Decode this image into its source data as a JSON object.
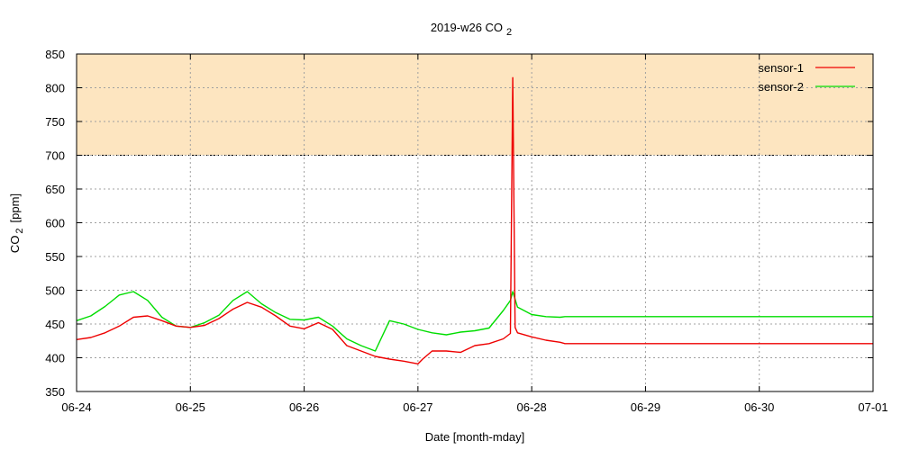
{
  "chart_data": {
    "type": "line",
    "title": "2019-w26 CO",
    "title_sub": "2",
    "xlabel": "Date [month-mday]",
    "ylabel_main": "CO",
    "ylabel_sub": "2",
    "ylabel_unit": "[ppm]",
    "ylim": [
      350,
      850
    ],
    "yticks": [
      350,
      400,
      450,
      500,
      550,
      600,
      650,
      700,
      750,
      800,
      850
    ],
    "xlim": [
      "06-24",
      "07-01"
    ],
    "xticks": [
      "06-24",
      "06-25",
      "06-26",
      "06-27",
      "06-28",
      "06-29",
      "06-30",
      "07-01"
    ],
    "grid": true,
    "legend_position": "top-right",
    "threshold": {
      "from": 700,
      "to": 850,
      "color": "#fde5c0"
    },
    "series": [
      {
        "name": "sensor-1",
        "color": "#ee0000",
        "x": [
          "06-24 00:00",
          "06-24 03:00",
          "06-24 06:00",
          "06-24 09:00",
          "06-24 12:00",
          "06-24 15:00",
          "06-24 18:00",
          "06-24 21:00",
          "06-25 00:00",
          "06-25 03:00",
          "06-25 06:00",
          "06-25 09:00",
          "06-25 12:00",
          "06-25 15:00",
          "06-25 18:00",
          "06-25 21:00",
          "06-26 00:00",
          "06-26 03:00",
          "06-26 06:00",
          "06-26 09:00",
          "06-26 12:00",
          "06-26 15:00",
          "06-26 18:00",
          "06-26 21:00",
          "06-27 00:00",
          "06-27 01:00",
          "06-27 03:00",
          "06-27 06:00",
          "06-27 09:00",
          "06-27 12:00",
          "06-27 15:00",
          "06-27 18:00",
          "06-27 19:30",
          "06-27 20:00",
          "06-27 20:30",
          "06-27 21:00",
          "06-28 00:00",
          "06-28 03:00",
          "06-28 06:00",
          "06-28 07:00",
          "06-29 00:00",
          "06-30 00:00",
          "07-01 00:00"
        ],
        "values": [
          427,
          430,
          437,
          447,
          460,
          462,
          455,
          447,
          445,
          448,
          458,
          472,
          482,
          475,
          462,
          447,
          443,
          452,
          442,
          418,
          410,
          402,
          398,
          395,
          391,
          398,
          410,
          410,
          408,
          418,
          421,
          428,
          436,
          815,
          445,
          437,
          431,
          426,
          423,
          421,
          421,
          421,
          421
        ]
      },
      {
        "name": "sensor-2",
        "color": "#00dd00",
        "x": [
          "06-24 00:00",
          "06-24 03:00",
          "06-24 06:00",
          "06-24 09:00",
          "06-24 12:00",
          "06-24 15:00",
          "06-24 18:00",
          "06-24 21:00",
          "06-25 00:00",
          "06-25 03:00",
          "06-25 06:00",
          "06-25 09:00",
          "06-25 12:00",
          "06-25 15:00",
          "06-25 18:00",
          "06-25 21:00",
          "06-26 00:00",
          "06-26 03:00",
          "06-26 06:00",
          "06-26 09:00",
          "06-26 12:00",
          "06-26 15:00",
          "06-26 18:00",
          "06-26 21:00",
          "06-27 00:00",
          "06-27 03:00",
          "06-27 06:00",
          "06-27 09:00",
          "06-27 12:00",
          "06-27 15:00",
          "06-27 18:00",
          "06-27 19:30",
          "06-27 20:00",
          "06-27 21:00",
          "06-28 00:00",
          "06-28 03:00",
          "06-28 06:00",
          "06-28 07:00",
          "06-29 00:00",
          "06-30 00:00",
          "07-01 00:00"
        ],
        "values": [
          455,
          462,
          476,
          493,
          498,
          485,
          460,
          447,
          445,
          452,
          463,
          485,
          498,
          480,
          467,
          457,
          456,
          460,
          447,
          428,
          418,
          410,
          455,
          450,
          442,
          437,
          434,
          438,
          440,
          444,
          470,
          485,
          498,
          475,
          464,
          461,
          460,
          461,
          461,
          461,
          461
        ]
      }
    ]
  }
}
